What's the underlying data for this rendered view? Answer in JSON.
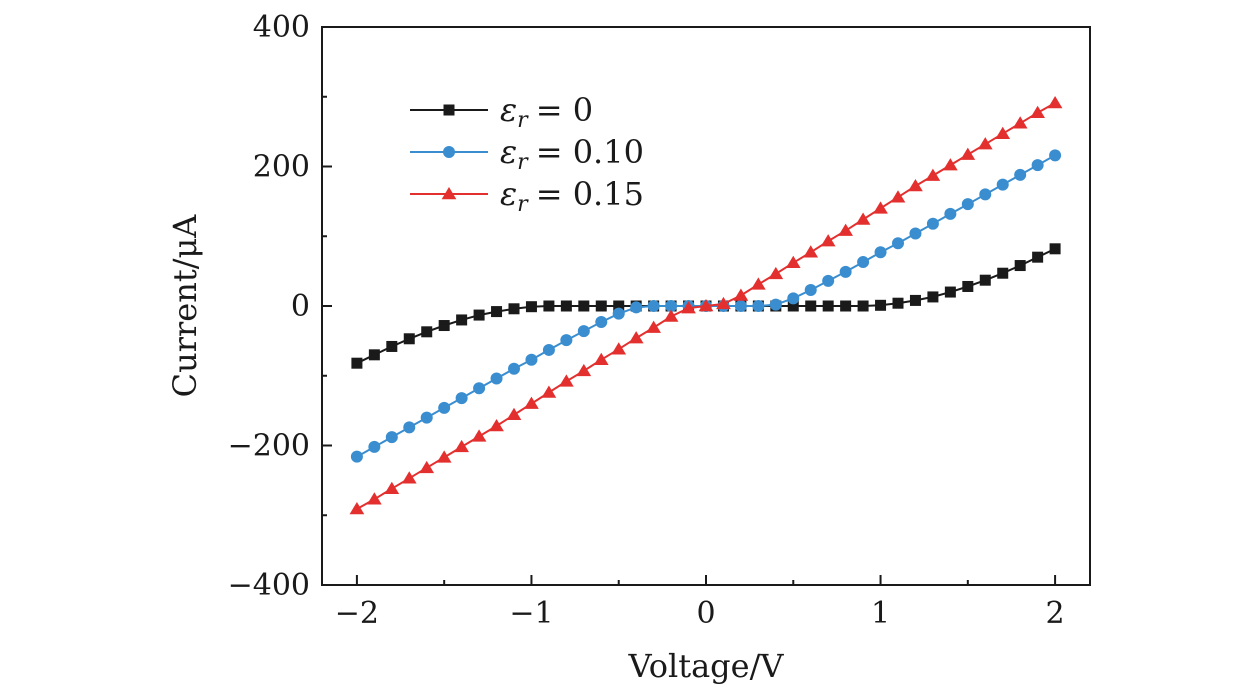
{
  "chart_data": {
    "type": "line",
    "xlabel": "Voltage/V",
    "ylabel": "Current/μA",
    "xlim": [
      -2.2,
      2.2
    ],
    "ylim": [
      -400,
      400
    ],
    "xticks": [
      -2,
      -1,
      0,
      1,
      2
    ],
    "xtick_labels": [
      "−2",
      "−1",
      "0",
      "1",
      "2"
    ],
    "yticks": [
      -400,
      -200,
      0,
      200,
      400
    ],
    "ytick_labels": [
      "−400",
      "−200",
      "0",
      "200",
      "400"
    ],
    "grid": false,
    "legend_position": "top-left",
    "x": [
      -2.0,
      -1.9,
      -1.8,
      -1.7,
      -1.6,
      -1.5,
      -1.4,
      -1.3,
      -1.2,
      -1.1,
      -1.0,
      -0.9,
      -0.8,
      -0.7,
      -0.6,
      -0.5,
      -0.4,
      -0.3,
      -0.2,
      -0.1,
      0.0,
      0.1,
      0.2,
      0.3,
      0.4,
      0.5,
      0.6,
      0.7,
      0.8,
      0.9,
      1.0,
      1.1,
      1.2,
      1.3,
      1.4,
      1.5,
      1.6,
      1.7,
      1.8,
      1.9,
      2.0
    ],
    "series": [
      {
        "symbol": "ε",
        "subscript": "r",
        "value_label": "= 0",
        "marker": "square",
        "color": "#1a1a1a",
        "values": [
          -82,
          -70,
          -58,
          -47,
          -37,
          -28,
          -20,
          -13,
          -8,
          -4,
          -1,
          0,
          0,
          0,
          0,
          0,
          0,
          0,
          0,
          0,
          0,
          0,
          0,
          0,
          0,
          0,
          0,
          0,
          0,
          0,
          1,
          4,
          8,
          13,
          20,
          28,
          37,
          47,
          58,
          70,
          82
        ]
      },
      {
        "symbol": "ε",
        "subscript": "r",
        "value_label": "= 0.10",
        "marker": "circle",
        "color": "#3a8ed0",
        "values": [
          -216,
          -202,
          -188,
          -174,
          -160,
          -146,
          -132,
          -118,
          -104,
          -90,
          -77,
          -63,
          -49,
          -36,
          -23,
          -11,
          -2,
          0,
          0,
          0,
          0,
          0,
          0,
          0,
          2,
          11,
          23,
          36,
          49,
          63,
          77,
          90,
          104,
          118,
          132,
          146,
          160,
          174,
          188,
          202,
          216
        ]
      },
      {
        "symbol": "ε",
        "subscript": "r",
        "value_label": "= 0.15",
        "marker": "triangle",
        "color": "#e3302f",
        "values": [
          -291,
          -277,
          -262,
          -247,
          -232,
          -217,
          -202,
          -187,
          -172,
          -156,
          -140,
          -124,
          -108,
          -93,
          -77,
          -62,
          -46,
          -31,
          -15,
          -3,
          0,
          3,
          15,
          31,
          46,
          62,
          77,
          93,
          108,
          124,
          140,
          156,
          172,
          187,
          202,
          217,
          232,
          247,
          262,
          277,
          291
        ]
      }
    ]
  }
}
